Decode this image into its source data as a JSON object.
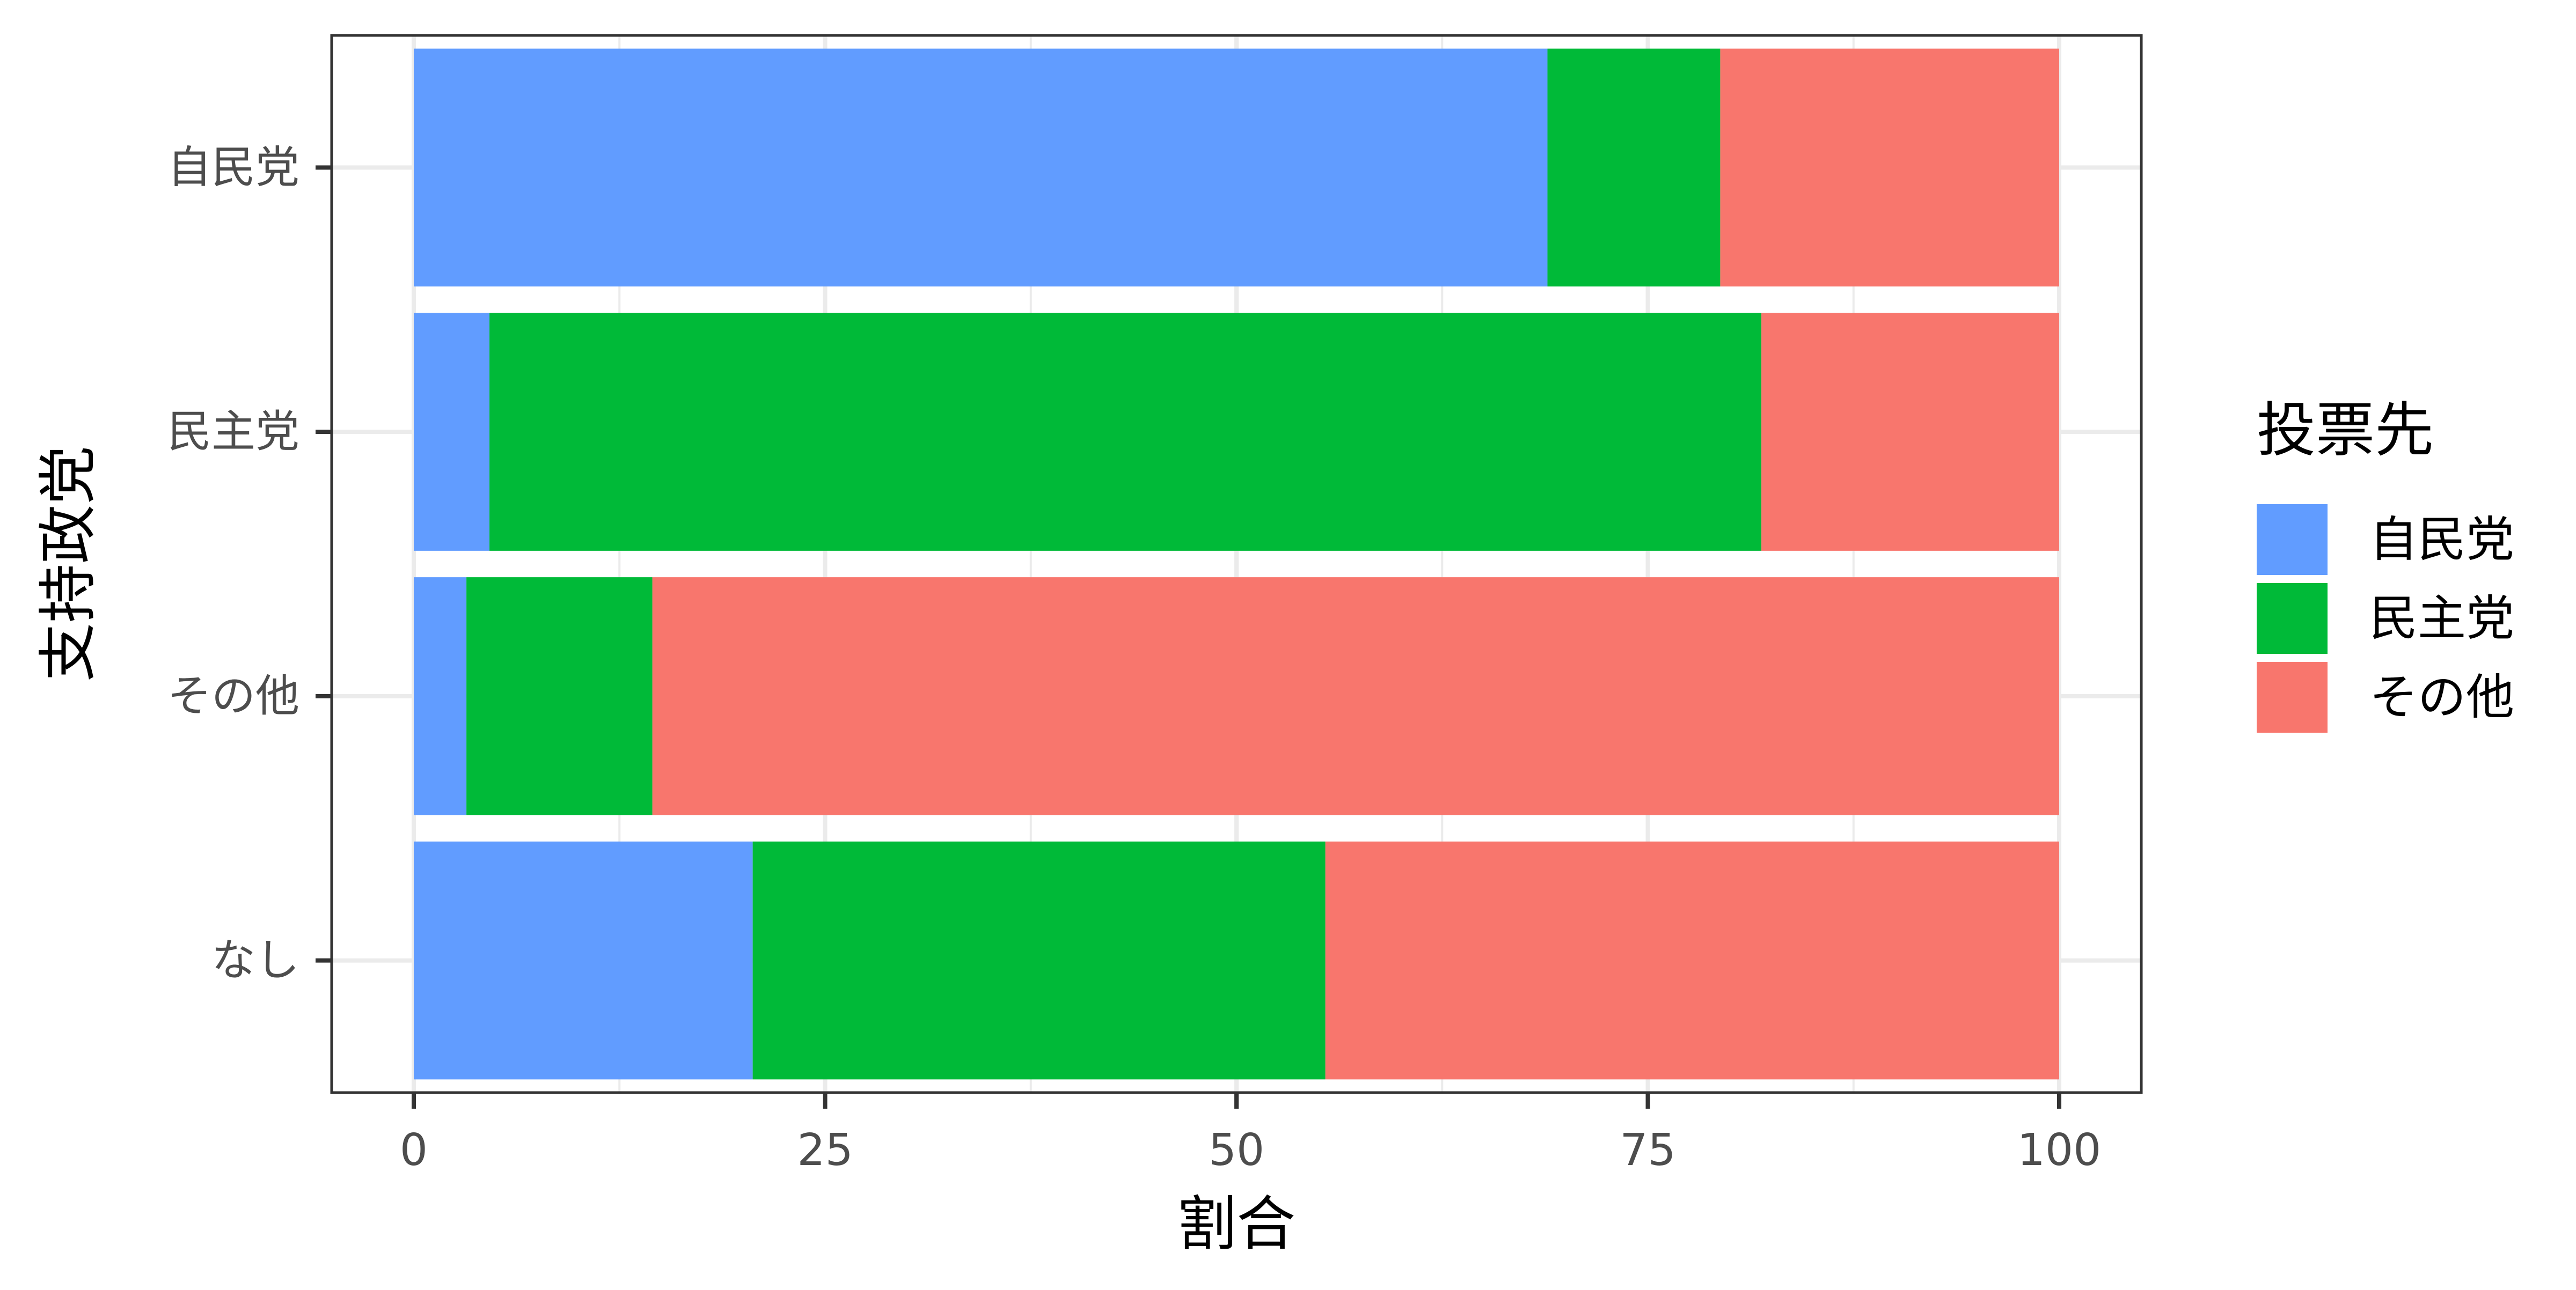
{
  "chart_data": {
    "type": "bar",
    "orientation": "horizontal",
    "stacked": true,
    "title": "",
    "xlabel": "割合",
    "ylabel": "支持政党",
    "xlim": [
      0,
      100
    ],
    "x_ticks": [
      0,
      25,
      50,
      75,
      100
    ],
    "categories": [
      "自民党",
      "民主党",
      "その他",
      "なし"
    ],
    "legend_title": "投票先",
    "legend_position": "right",
    "grid": true,
    "series": [
      {
        "name": "自民党",
        "color": "#619CFF",
        "values": [
          68.9,
          4.6,
          3.2,
          20.6
        ]
      },
      {
        "name": "民主党",
        "color": "#00BA38",
        "values": [
          10.5,
          77.3,
          11.3,
          34.8
        ]
      },
      {
        "name": "その他",
        "color": "#F8766D",
        "values": [
          20.6,
          18.1,
          85.5,
          44.6
        ]
      }
    ]
  }
}
